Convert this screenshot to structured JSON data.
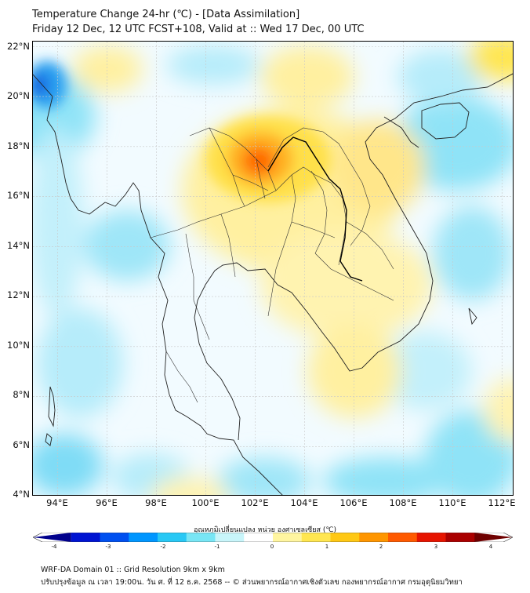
{
  "header": {
    "title": "Temperature Change 24-hr (℃) - [Data Assimilation]",
    "subtitle": "Friday 12 Dec, 12 UTC FCST+108, Valid at :: Wed 17 Dec, 00 UTC"
  },
  "map": {
    "lon_range": [
      93,
      112.5
    ],
    "lat_range": [
      4,
      22.2
    ],
    "lat_ticks": [
      "22°N",
      "20°N",
      "18°N",
      "16°N",
      "14°N",
      "12°N",
      "10°N",
      "8°N",
      "6°N",
      "4°N"
    ],
    "lon_ticks": [
      "94°E",
      "96°E",
      "98°E",
      "100°E",
      "102°E",
      "104°E",
      "106°E",
      "108°E",
      "110°E",
      "112°E"
    ],
    "background_color": "#f2fbff",
    "grid": true
  },
  "colorbar": {
    "title": "อุณหภูมิเปลี่ยนแปลง หน่วย องศาเซลเซียส (℃)",
    "ticks": [
      "-4",
      "-3",
      "-2",
      "-1",
      "0",
      "1",
      "2",
      "3",
      "4"
    ],
    "range": [
      -4,
      4
    ],
    "colors": [
      "#00008c",
      "#0014d2",
      "#0050f0",
      "#0096ff",
      "#28c8f5",
      "#78e6f5",
      "#c8f5fa",
      "#ffffff",
      "#fff5a0",
      "#ffe650",
      "#ffc814",
      "#ff9600",
      "#ff5a00",
      "#e61400",
      "#aa0000",
      "#6e0000"
    ]
  },
  "footer": {
    "line1": "WRF-DA Domain 01 :: Grid Resolution 9km x 9km",
    "line2": "ปรับปรุงข้อมูล ณ เวลา 19:00น. วัน ศ. ที่ 12 ธ.ค. 2568 -- © ส่วนพยากรณ์อากาศเชิงตัวเลข กองพยากรณ์อากาศ กรมอุตุนิยมวิทยา"
  }
}
